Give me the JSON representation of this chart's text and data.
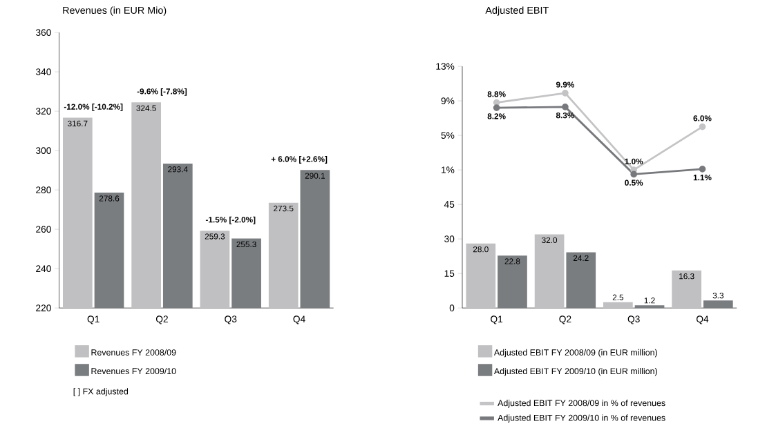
{
  "chart_data": [
    {
      "type": "bar",
      "title": "Revenues (in EUR Mio)",
      "categories": [
        "Q1",
        "Q2",
        "Q3",
        "Q4"
      ],
      "ylim": [
        220,
        360
      ],
      "yticks": [
        220,
        240,
        260,
        280,
        300,
        320,
        340,
        360
      ],
      "legend": "bottom",
      "series": [
        {
          "name": "Revenues FY 2008/09",
          "color": "#c0c0c2",
          "values": [
            316.7,
            324.5,
            259.3,
            273.5
          ],
          "value_labels": [
            "316.7",
            "324.5",
            "259.3",
            "273.5"
          ]
        },
        {
          "name": "Revenues FY 2009/10",
          "color": "#7a7d80",
          "values": [
            278.6,
            293.4,
            255.3,
            290.1
          ],
          "value_labels": [
            "278.6",
            "293.4",
            "255.3",
            "290.1"
          ]
        }
      ],
      "annotations": [
        "-12.0% [-10.2%]",
        "-9.6% [-7.8%]",
        "-1.5% [-2.0%]",
        "+ 6.0% [+2.6%]",
        "[ ] FX adjusted"
      ]
    },
    {
      "type": "bar",
      "title": "Adjusted EBIT",
      "categories": [
        "Q1",
        "Q2",
        "Q3",
        "Q4"
      ],
      "ylim": [
        0,
        105
      ],
      "yticks": [
        0,
        15,
        30,
        45
      ],
      "legend": "bottom",
      "marker": "circle",
      "y2lim": [
        -15,
        13
      ],
      "y2ticks": [
        {
          "value": 1,
          "label": "1%"
        },
        {
          "value": 5,
          "label": "5%"
        },
        {
          "value": 9,
          "label": "9%"
        },
        {
          "value": 13,
          "label": "13%"
        }
      ],
      "series": [
        {
          "name": "Adjusted EBIT FY 2008/09 (in EUR million)",
          "color": "#c0c0c2",
          "values": [
            28.0,
            32.0,
            2.5,
            16.3
          ],
          "value_labels": [
            "28.0",
            "32.0",
            "2.5",
            "16.3"
          ]
        },
        {
          "name": "Adjusted EBIT FY 2009/10 (in EUR million)",
          "color": "#7a7d80",
          "values": [
            22.8,
            24.2,
            1.2,
            3.3
          ],
          "value_labels": [
            "22.8",
            "24.2",
            "1.2",
            "3.3"
          ]
        },
        {
          "name": "Adjusted EBIT FY 2008/09 in % of revenues",
          "type": "line",
          "axis": "y2",
          "color": "#c4c4c6",
          "values": [
            8.8,
            9.9,
            1.0,
            6.0
          ],
          "value_labels": [
            "8.8%",
            "9.9%",
            "1.0%",
            "6.0%"
          ]
        },
        {
          "name": "Adjusted EBIT FY 2009/10 in % of revenues",
          "type": "line",
          "axis": "y2",
          "color": "#77797c",
          "values": [
            8.2,
            8.3,
            0.5,
            1.1
          ],
          "value_labels": [
            "8.2%",
            "8.3%",
            "0.5%",
            "1.1%"
          ]
        }
      ]
    }
  ]
}
